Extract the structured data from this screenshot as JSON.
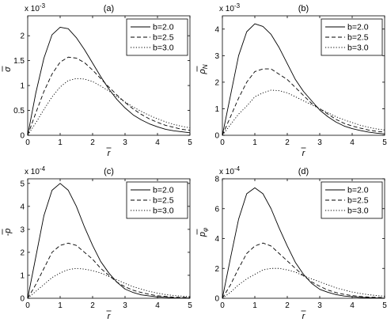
{
  "chart_data": [
    {
      "type": "line",
      "title": "(a)",
      "multiplier": "x 10",
      "exponent": "-3",
      "xlabel": "r",
      "ylabel": "σ",
      "xlim": [
        0,
        5
      ],
      "ylim": [
        0,
        0.0024
      ],
      "xticks": [
        0,
        1,
        2,
        3,
        4,
        5
      ],
      "yticks": [
        0,
        0.0005,
        0.001,
        0.0015,
        0.002
      ],
      "yticklabels": [
        "0",
        "0.5",
        "1",
        "1.5",
        "2"
      ],
      "legend_position": "top-right",
      "x": [
        0,
        0.25,
        0.5,
        0.75,
        1,
        1.25,
        1.5,
        1.75,
        2,
        2.25,
        2.5,
        2.75,
        3,
        3.25,
        3.5,
        3.75,
        4,
        4.25,
        4.5,
        4.75,
        5
      ],
      "series": [
        {
          "name": "b=2.0",
          "line_style": "solid",
          "values": [
            0,
            0.00085,
            0.00155,
            0.00202,
            0.00217,
            0.00214,
            0.00196,
            0.00172,
            0.00145,
            0.00118,
            0.00093,
            0.00072,
            0.00055,
            0.00041,
            0.00031,
            0.00023,
            0.00017,
            0.00012,
            9e-05,
            7e-05,
            5e-05
          ]
        },
        {
          "name": "b=2.5",
          "line_style": "dashed",
          "values": [
            0,
            0.00045,
            0.00088,
            0.00123,
            0.00147,
            0.00157,
            0.00155,
            0.00146,
            0.00131,
            0.00114,
            0.00097,
            0.00081,
            0.00066,
            0.00053,
            0.00042,
            0.00033,
            0.00026,
            0.0002,
            0.00016,
            0.00012,
            0.0001
          ]
        },
        {
          "name": "b=3.0",
          "line_style": "dotted",
          "values": [
            0,
            0.00025,
            0.00052,
            0.00077,
            0.00097,
            0.0011,
            0.00114,
            0.00113,
            0.00108,
            0.00099,
            0.00089,
            0.00078,
            0.00067,
            0.00057,
            0.00048,
            0.0004,
            0.00033,
            0.00027,
            0.00022,
            0.00018,
            0.00015
          ]
        }
      ]
    },
    {
      "type": "line",
      "title": "(b)",
      "multiplier": "x 10",
      "exponent": "-3",
      "xlabel": "r",
      "ylabel": "ρ",
      "ylabel_sub": "N",
      "xlim": [
        0,
        5
      ],
      "ylim": [
        0,
        0.0045
      ],
      "xticks": [
        0,
        1,
        2,
        3,
        4,
        5
      ],
      "yticks": [
        0,
        0.001,
        0.002,
        0.003,
        0.004
      ],
      "yticklabels": [
        "0",
        "1",
        "2",
        "3",
        "4"
      ],
      "legend_position": "top-right",
      "x": [
        0,
        0.25,
        0.5,
        0.75,
        1,
        1.25,
        1.5,
        1.75,
        2,
        2.25,
        2.5,
        2.75,
        3,
        3.25,
        3.5,
        3.75,
        4,
        4.25,
        4.5,
        4.75,
        5
      ],
      "series": [
        {
          "name": "b=2.0",
          "line_style": "solid",
          "values": [
            0,
            0.0015,
            0.003,
            0.0039,
            0.0042,
            0.0041,
            0.0038,
            0.0033,
            0.0027,
            0.0021,
            0.00165,
            0.0013,
            0.00095,
            0.0007,
            0.0005,
            0.00035,
            0.00025,
            0.00018,
            0.00012,
            8e-05,
            5e-05
          ]
        },
        {
          "name": "b=2.5",
          "line_style": "dashed",
          "values": [
            0,
            0.0007,
            0.0014,
            0.002,
            0.0024,
            0.0025,
            0.0025,
            0.0023,
            0.0021,
            0.0018,
            0.0015,
            0.0012,
            0.001,
            0.0008,
            0.0006,
            0.00045,
            0.00035,
            0.00027,
            0.0002,
            0.00015,
            0.00012
          ]
        },
        {
          "name": "b=3.0",
          "line_style": "dotted",
          "values": [
            0,
            0.0004,
            0.0008,
            0.0011,
            0.00145,
            0.0016,
            0.0017,
            0.00168,
            0.0016,
            0.00145,
            0.0013,
            0.00115,
            0.001,
            0.00085,
            0.0007,
            0.00058,
            0.00048,
            0.00038,
            0.0003,
            0.00024,
            0.0002
          ]
        }
      ]
    },
    {
      "type": "line",
      "title": "(c)",
      "multiplier": "x 10",
      "exponent": "-4",
      "xlabel": "r",
      "ylabel": "-p",
      "xlim": [
        0,
        5
      ],
      "ylim": [
        0,
        0.00052
      ],
      "xticks": [
        0,
        1,
        2,
        3,
        4,
        5
      ],
      "yticks": [
        0,
        0.0001,
        0.0002,
        0.0003,
        0.0004,
        0.0005
      ],
      "yticklabels": [
        "0",
        "1",
        "2",
        "3",
        "4",
        "5"
      ],
      "legend_position": "top-right",
      "x": [
        0,
        0.25,
        0.5,
        0.75,
        1,
        1.25,
        1.5,
        1.75,
        2,
        2.25,
        2.5,
        2.75,
        3,
        3.25,
        3.5,
        3.75,
        4,
        4.25,
        4.5,
        4.75,
        5
      ],
      "series": [
        {
          "name": "b=2.0",
          "line_style": "solid",
          "values": [
            0,
            0.00018,
            0.00036,
            0.00047,
            0.0005,
            0.00047,
            0.0004,
            0.00031,
            0.00023,
            0.00016,
            0.00011,
            7e-05,
            4e-05,
            2.5e-05,
            1.5e-05,
            1e-05,
            6e-06,
            4e-06,
            2e-06,
            1e-06,
            1e-06
          ]
        },
        {
          "name": "b=2.5",
          "line_style": "dashed",
          "values": [
            0,
            6e-05,
            0.00013,
            0.0002,
            0.00023,
            0.00024,
            0.00023,
            0.0002,
            0.00017,
            0.00013,
            0.0001,
            7e-05,
            5e-05,
            3.5e-05,
            2.5e-05,
            1.7e-05,
            1.1e-05,
            8e-06,
            5e-06,
            4e-06,
            3e-06
          ]
        },
        {
          "name": "b=3.0",
          "line_style": "dotted",
          "values": [
            0,
            3e-05,
            6e-05,
            9e-05,
            0.00011,
            0.000125,
            0.00013,
            0.000127,
            0.00012,
            0.00011,
            9.5e-05,
            8e-05,
            6.5e-05,
            5e-05,
            4e-05,
            3e-05,
            2.2e-05,
            1.6e-05,
            1.2e-05,
            9e-06,
            7e-06
          ]
        }
      ]
    },
    {
      "type": "line",
      "title": "(d)",
      "multiplier": "x 10",
      "exponent": "-4",
      "xlabel": "r",
      "ylabel": "p",
      "ylabel_sub": "φ",
      "xlim": [
        0,
        5
      ],
      "ylim": [
        0,
        0.0008
      ],
      "xticks": [
        0,
        1,
        2,
        3,
        4,
        5
      ],
      "yticks": [
        0,
        0.0002,
        0.0004,
        0.0006,
        0.0008
      ],
      "yticklabels": [
        "0",
        "2",
        "4",
        "6",
        "8"
      ],
      "legend_position": "top-right",
      "x": [
        0,
        0.25,
        0.5,
        0.75,
        1,
        1.25,
        1.5,
        1.75,
        2,
        2.25,
        2.5,
        2.75,
        3,
        3.25,
        3.5,
        3.75,
        4,
        4.25,
        4.5,
        4.75,
        5
      ],
      "series": [
        {
          "name": "b=2.0",
          "line_style": "solid",
          "values": [
            0,
            0.00027,
            0.00053,
            0.0007,
            0.00074,
            0.0007,
            0.0006,
            0.00047,
            0.00035,
            0.00024,
            0.00016,
            0.0001,
            6e-05,
            4e-05,
            2.5e-05,
            1.5e-05,
            1e-05,
            6e-06,
            4e-06,
            2e-06,
            1e-06
          ]
        },
        {
          "name": "b=2.5",
          "line_style": "dashed",
          "values": [
            0,
            9e-05,
            0.0002,
            0.0003,
            0.00035,
            0.00037,
            0.00035,
            0.0003,
            0.00025,
            0.0002,
            0.00015,
            0.00011,
            8e-05,
            5.5e-05,
            3.8e-05,
            2.6e-05,
            1.8e-05,
            1.2e-05,
            8e-06,
            6e-06,
            4e-06
          ]
        },
        {
          "name": "b=3.0",
          "line_style": "dotted",
          "values": [
            0,
            4e-05,
            9e-05,
            0.00013,
            0.00016,
            0.00019,
            0.0002,
            0.0002,
            0.00019,
            0.000175,
            0.00015,
            0.00013,
            0.00011,
            9e-05,
            7e-05,
            5.5e-05,
            4.2e-05,
            3.2e-05,
            2.4e-05,
            1.8e-05,
            1.4e-05
          ]
        }
      ]
    }
  ]
}
